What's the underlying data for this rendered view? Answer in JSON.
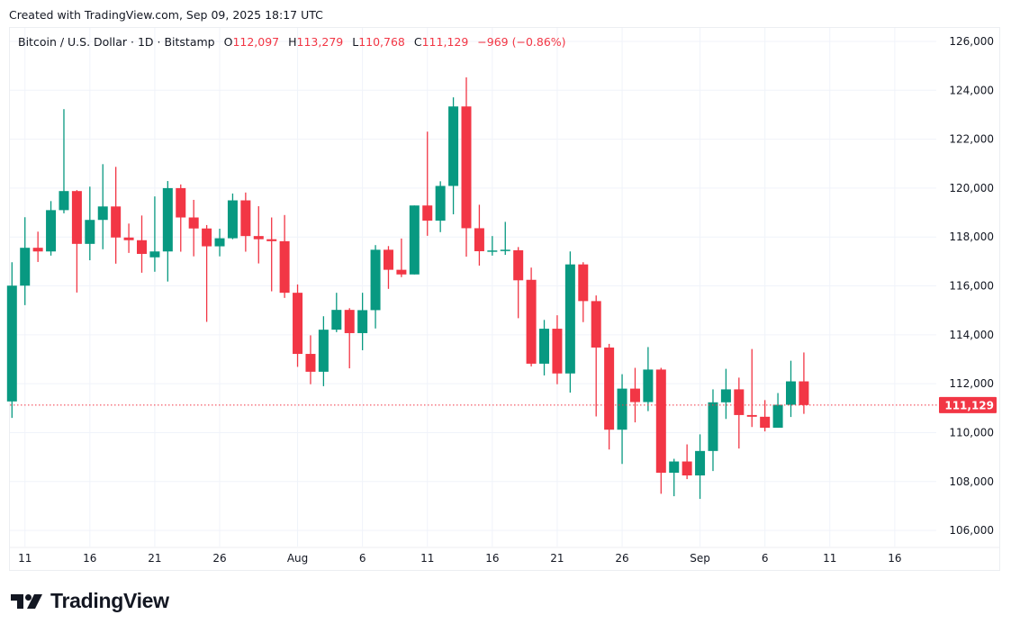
{
  "header": {
    "created": "Created with TradingView.com, Sep 09, 2025 18:17 UTC"
  },
  "legend": {
    "symbol": "Bitcoin / U.S. Dollar · 1D · Bitstamp",
    "o_label": "O",
    "o": "112,097",
    "h_label": "H",
    "h": "113,279",
    "l_label": "L",
    "l": "110,768",
    "c_label": "C",
    "c": "111,129",
    "change": "−969 (−0.86%)"
  },
  "logo": {
    "text": "TradingView"
  },
  "colors": {
    "up": "#089981",
    "down": "#f23645",
    "grid": "#f0f3fa",
    "last_price": "#f23645"
  },
  "chart_data": {
    "type": "candlestick",
    "title": "Bitcoin / U.S. Dollar · 1D · Bitstamp",
    "start_date": "2025-07-10",
    "interval": "1D",
    "ylim": [
      105200,
      126600
    ],
    "grid": true,
    "y_ticks": [
      "126,000",
      "124,000",
      "122,000",
      "120,000",
      "118,000",
      "116,000",
      "114,000",
      "112,000",
      "110,000",
      "108,000",
      "106,000"
    ],
    "x_ticks": [
      {
        "label": "11",
        "date": "2025-07-11"
      },
      {
        "label": "16",
        "date": "2025-07-16"
      },
      {
        "label": "21",
        "date": "2025-07-21"
      },
      {
        "label": "26",
        "date": "2025-07-26"
      },
      {
        "label": "Aug",
        "date": "2025-08-01"
      },
      {
        "label": "6",
        "date": "2025-08-06"
      },
      {
        "label": "11",
        "date": "2025-08-11"
      },
      {
        "label": "16",
        "date": "2025-08-16"
      },
      {
        "label": "21",
        "date": "2025-08-21"
      },
      {
        "label": "26",
        "date": "2025-08-26"
      },
      {
        "label": "Sep",
        "date": "2025-09-01"
      },
      {
        "label": "6",
        "date": "2025-09-06"
      },
      {
        "label": "11",
        "date": "2025-09-11"
      },
      {
        "label": "16",
        "date": "2025-09-16"
      }
    ],
    "last_price": {
      "value": 111129,
      "label": "111,129"
    },
    "columns": [
      "open",
      "high",
      "low",
      "close"
    ],
    "ohlc": [
      [
        111276,
        116970,
        110600,
        116012
      ],
      [
        116012,
        118810,
        115215,
        117560
      ],
      [
        117560,
        118220,
        116980,
        117410
      ],
      [
        117410,
        119470,
        117240,
        119100
      ],
      [
        119100,
        123230,
        118970,
        119880
      ],
      [
        119880,
        119920,
        115730,
        117720
      ],
      [
        117720,
        120060,
        117050,
        118700
      ],
      [
        118700,
        120980,
        117500,
        119250
      ],
      [
        119250,
        120870,
        116910,
        117980
      ],
      [
        117980,
        118550,
        117350,
        117870
      ],
      [
        117870,
        118880,
        116540,
        117310
      ],
      [
        117170,
        119660,
        116580,
        117410
      ],
      [
        117410,
        120290,
        116180,
        120000
      ],
      [
        120000,
        120150,
        117400,
        118800
      ],
      [
        118800,
        119520,
        117210,
        118350
      ],
      [
        118350,
        118490,
        114530,
        117620
      ],
      [
        117620,
        118340,
        117210,
        117950
      ],
      [
        117950,
        119780,
        117910,
        119500
      ],
      [
        119500,
        119820,
        117400,
        118040
      ],
      [
        118040,
        119260,
        116920,
        117910
      ],
      [
        117910,
        118800,
        115780,
        117830
      ],
      [
        117830,
        118900,
        115510,
        115720
      ],
      [
        115720,
        116060,
        112690,
        113220
      ],
      [
        113220,
        113980,
        111980,
        112490
      ],
      [
        112490,
        114760,
        111900,
        114210
      ],
      [
        114210,
        115720,
        114110,
        115020
      ],
      [
        115020,
        115090,
        112630,
        114070
      ],
      [
        114070,
        115720,
        113370,
        115010
      ],
      [
        115010,
        117670,
        114260,
        117480
      ],
      [
        117480,
        117630,
        115880,
        116660
      ],
      [
        116660,
        117940,
        116360,
        116470
      ],
      [
        116470,
        119290,
        116470,
        119290
      ],
      [
        119290,
        122310,
        118050,
        118670
      ],
      [
        118670,
        120280,
        118200,
        120090
      ],
      [
        120090,
        123710,
        118930,
        123340
      ],
      [
        123340,
        124530,
        117200,
        118360
      ],
      [
        118360,
        119320,
        116830,
        117420
      ],
      [
        117420,
        118040,
        117240,
        117450
      ],
      [
        117440,
        118620,
        117270,
        117480
      ],
      [
        117460,
        117590,
        114680,
        116230
      ],
      [
        116250,
        116750,
        112710,
        112820
      ],
      [
        112820,
        114610,
        112340,
        114250
      ],
      [
        114250,
        114800,
        111980,
        112420
      ],
      [
        112420,
        117410,
        111640,
        116880
      ],
      [
        116880,
        116970,
        114520,
        115380
      ],
      [
        115380,
        115610,
        110660,
        113480
      ],
      [
        113480,
        113630,
        109310,
        110120
      ],
      [
        110120,
        112390,
        108720,
        111800
      ],
      [
        111800,
        112650,
        110420,
        111250
      ],
      [
        111250,
        113500,
        110880,
        112580
      ],
      [
        112580,
        112650,
        107500,
        108360
      ],
      [
        108360,
        108930,
        107400,
        108820
      ],
      [
        108820,
        109520,
        108100,
        108250
      ],
      [
        108250,
        109930,
        107290,
        109250
      ],
      [
        109250,
        111770,
        108430,
        111240
      ],
      [
        111240,
        112610,
        110560,
        111770
      ],
      [
        111770,
        112250,
        109350,
        110720
      ],
      [
        110720,
        113420,
        110230,
        110650
      ],
      [
        110650,
        111330,
        110050,
        110200
      ],
      [
        110200,
        111620,
        110200,
        111140
      ],
      [
        111140,
        112940,
        110640,
        112097
      ],
      [
        112097,
        113279,
        110768,
        111129
      ]
    ]
  }
}
